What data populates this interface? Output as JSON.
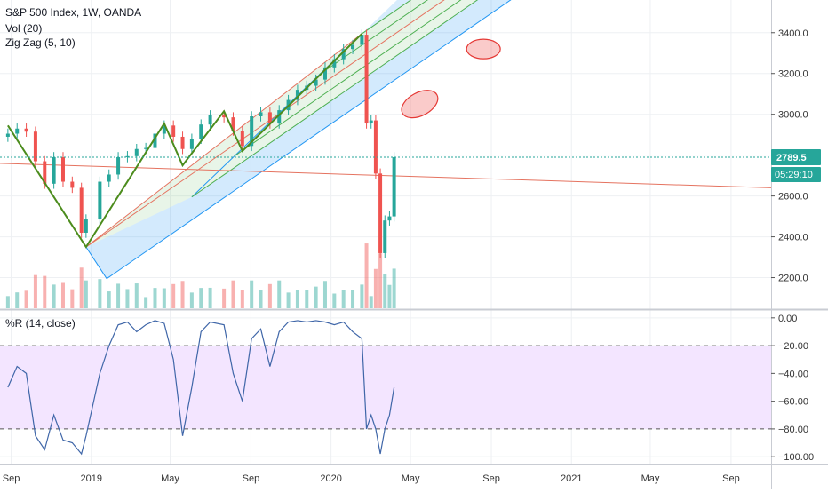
{
  "legend": {
    "title": "S&P 500 Index, 1W, OANDA",
    "vol": "Vol (20)",
    "zigzag": "Zig Zag (5, 10)",
    "williams": "%R (14, close)"
  },
  "colors": {
    "up": "#26a69a",
    "down": "#ef5350",
    "zigzag": "#4c8c1d",
    "pitchfork_blue": "#2196f3",
    "pitchfork_green": "#4caf50",
    "pitchfork_red": "#e57360",
    "wr_line": "#3f66a8",
    "wr_band": "#f3e5ff",
    "last_price": "#26a69a"
  },
  "price_axis": {
    "ticks": [
      "3400.0",
      "3200.0",
      "3000.0",
      "2800.0",
      "2600.0",
      "2400.0",
      "2200.0"
    ],
    "last_price": "2789.5",
    "countdown": "05:29:10"
  },
  "wr_axis": {
    "ticks": [
      "0.00",
      "−20.00",
      "−40.00",
      "−60.00",
      "−80.00",
      "−100.00"
    ]
  },
  "time_axis": {
    "labels": [
      "Sep",
      "2019",
      "May",
      "Sep",
      "2020",
      "May",
      "Sep",
      "2021",
      "May",
      "Sep"
    ]
  },
  "chart_data": [
    {
      "type": "candlestick",
      "title": "S&P 500 Index, 1W, OANDA",
      "x": [
        "2018-08-27",
        "2018-09-10",
        "2018-09-24",
        "2018-10-08",
        "2018-10-22",
        "2018-11-05",
        "2018-11-19",
        "2018-12-03",
        "2018-12-17",
        "2018-12-24",
        "2019-01-14",
        "2019-01-28",
        "2019-02-11",
        "2019-02-25",
        "2019-03-11",
        "2019-03-25",
        "2019-04-08",
        "2019-04-22",
        "2019-05-06",
        "2019-05-20",
        "2019-06-03",
        "2019-06-17",
        "2019-07-01",
        "2019-07-22",
        "2019-08-05",
        "2019-08-19",
        "2019-09-02",
        "2019-09-16",
        "2019-09-30",
        "2019-10-14",
        "2019-10-28",
        "2019-11-11",
        "2019-11-25",
        "2019-12-09",
        "2019-12-23",
        "2020-01-06",
        "2020-01-20",
        "2020-02-03",
        "2020-02-17",
        "2020-02-24",
        "2020-03-02",
        "2020-03-09",
        "2020-03-16",
        "2020-03-23",
        "2020-03-30",
        "2020-04-06"
      ],
      "close": [
        2905,
        2930,
        2915,
        2770,
        2660,
        2790,
        2670,
        2640,
        2420,
        2485,
        2670,
        2705,
        2790,
        2795,
        2830,
        2835,
        2905,
        2945,
        2890,
        2830,
        2880,
        2950,
        2995,
        2985,
        2920,
        2845,
        2990,
        3010,
        2955,
        3020,
        3070,
        3120,
        3140,
        3170,
        3230,
        3270,
        3320,
        3340,
        3390,
        2955,
        2970,
        2710,
        2320,
        2480,
        2500,
        2789.5
      ],
      "ylim": [
        2100,
        3550
      ],
      "volume_scale": "relative"
    },
    {
      "type": "line",
      "title": "%R (14, close)",
      "x": [
        "2018-08-27",
        "2018-09-10",
        "2018-09-24",
        "2018-10-08",
        "2018-10-22",
        "2018-11-05",
        "2018-11-19",
        "2018-12-03",
        "2018-12-17",
        "2018-12-24",
        "2019-01-14",
        "2019-01-28",
        "2019-02-11",
        "2019-02-25",
        "2019-03-11",
        "2019-03-25",
        "2019-04-08",
        "2019-04-22",
        "2019-05-06",
        "2019-05-20",
        "2019-06-03",
        "2019-06-17",
        "2019-07-01",
        "2019-07-22",
        "2019-08-05",
        "2019-08-19",
        "2019-09-02",
        "2019-09-16",
        "2019-09-30",
        "2019-10-14",
        "2019-10-28",
        "2019-11-11",
        "2019-11-25",
        "2019-12-09",
        "2019-12-23",
        "2020-01-06",
        "2020-01-20",
        "2020-02-03",
        "2020-02-17",
        "2020-02-24",
        "2020-03-02",
        "2020-03-09",
        "2020-03-16",
        "2020-03-23",
        "2020-03-30",
        "2020-04-06"
      ],
      "values": [
        -50,
        -35,
        -40,
        -85,
        -95,
        -70,
        -88,
        -90,
        -98,
        -85,
        -40,
        -20,
        -5,
        -3,
        -10,
        -5,
        -2,
        -4,
        -30,
        -85,
        -50,
        -10,
        -3,
        -5,
        -40,
        -60,
        -15,
        -8,
        -35,
        -10,
        -3,
        -2,
        -3,
        -2,
        -3,
        -5,
        -3,
        -10,
        -15,
        -80,
        -70,
        -80,
        -98,
        -80,
        -70,
        -50
      ],
      "ylim": [
        -105,
        5
      ],
      "hlines": [
        -20,
        -80
      ]
    }
  ]
}
